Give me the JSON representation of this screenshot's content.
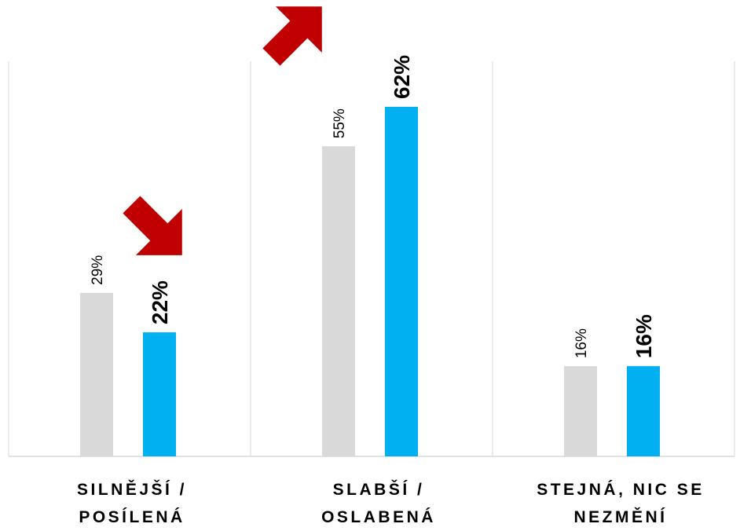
{
  "chart_data": {
    "type": "bar",
    "categories": [
      "SILNĚJŠÍ /\nPOSÍLENÁ",
      "SLABŠÍ /\nOSLABENÁ",
      "STEJNÁ, NIC SE\nNEZMĚNÍ"
    ],
    "series": [
      {
        "values": [
          29,
          55,
          16
        ],
        "labels": [
          "29%",
          "55%",
          "16%"
        ],
        "color": "#d9d9d9"
      },
      {
        "values": [
          22,
          62,
          16
        ],
        "labels": [
          "22%",
          "62%",
          "16%"
        ],
        "color": "#00b0f0"
      }
    ],
    "ylim": [
      0,
      62
    ],
    "grid": false,
    "legend": "none",
    "trend_arrows": [
      {
        "category": "SILNĚJŠÍ /\nPOSÍLENÁ",
        "direction": "down",
        "color": "#c00000"
      },
      {
        "category": "SLABŠÍ /\nOSLABENÁ",
        "direction": "up",
        "color": "#c00000"
      }
    ],
    "separator_color": "#d9d9d9"
  }
}
